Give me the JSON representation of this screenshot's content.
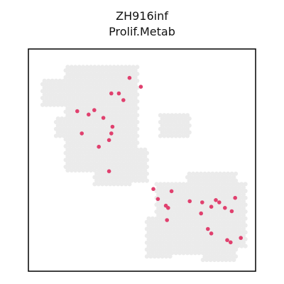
{
  "chart_data": {
    "type": "scatter",
    "title": "ZH916inf",
    "subtitle": "Prolif.Metab",
    "xlabel": "",
    "ylabel": "",
    "xlim": [
      0,
      100
    ],
    "ylim": [
      0,
      100
    ],
    "grid": false,
    "ticks": false,
    "legend": "none",
    "series": [
      {
        "role": "background",
        "color": "#ebebeb",
        "regions": [
          {
            "x": [
              16,
              48
            ],
            "y": [
              45,
              92
            ]
          },
          {
            "x": [
              6,
              16
            ],
            "y": [
              74,
              86
            ]
          },
          {
            "x": [
              12,
              26
            ],
            "y": [
              60,
              70
            ]
          },
          {
            "x": [
              25,
              37
            ],
            "y": [
              46,
              56
            ]
          },
          {
            "x": [
              29,
              45
            ],
            "y": [
              39,
              50
            ]
          },
          {
            "x": [
              40,
              53
            ],
            "y": [
              40,
              56
            ]
          },
          {
            "x": [
              34,
              47
            ],
            "y": [
              44,
              74
            ]
          },
          {
            "x": [
              58,
              71
            ],
            "y": [
              60,
              71
            ]
          },
          {
            "x": [
              42,
              50
            ],
            "y": [
              40,
              49
            ]
          },
          {
            "x": [
              56,
              96
            ],
            "y": [
              10,
              40
            ]
          },
          {
            "x": [
              52,
              64
            ],
            "y": [
              6,
              24
            ]
          },
          {
            "x": [
              64,
              79
            ],
            "y": [
              8,
              22
            ]
          },
          {
            "x": [
              76,
              92
            ],
            "y": [
              5,
              16
            ]
          },
          {
            "x": [
              70,
              92
            ],
            "y": [
              30,
              44
            ]
          }
        ]
      },
      {
        "role": "highlight",
        "color": "#e0406e",
        "points": [
          [
            44.5,
            87
          ],
          [
            49.5,
            83
          ],
          [
            36.5,
            80
          ],
          [
            39.8,
            80
          ],
          [
            41.8,
            77
          ],
          [
            29,
            72.5
          ],
          [
            21.5,
            72
          ],
          [
            26.5,
            70.5
          ],
          [
            33,
            69
          ],
          [
            37,
            65
          ],
          [
            36.5,
            62
          ],
          [
            23.5,
            62
          ],
          [
            35.5,
            59
          ],
          [
            31,
            56
          ],
          [
            35.5,
            45
          ],
          [
            55,
            37
          ],
          [
            57,
            32.5
          ],
          [
            63,
            36
          ],
          [
            71,
            31.5
          ],
          [
            76.5,
            31
          ],
          [
            82.5,
            32
          ],
          [
            84,
            31
          ],
          [
            91,
            33
          ],
          [
            86.5,
            28.5
          ],
          [
            60.5,
            29.5
          ],
          [
            61.5,
            28.5
          ],
          [
            80.5,
            29
          ],
          [
            89.5,
            27
          ],
          [
            76,
            26
          ],
          [
            61,
            23
          ],
          [
            79,
            19
          ],
          [
            80.5,
            17
          ],
          [
            93.5,
            15
          ],
          [
            87.5,
            14
          ],
          [
            89,
            13
          ]
        ]
      }
    ]
  }
}
